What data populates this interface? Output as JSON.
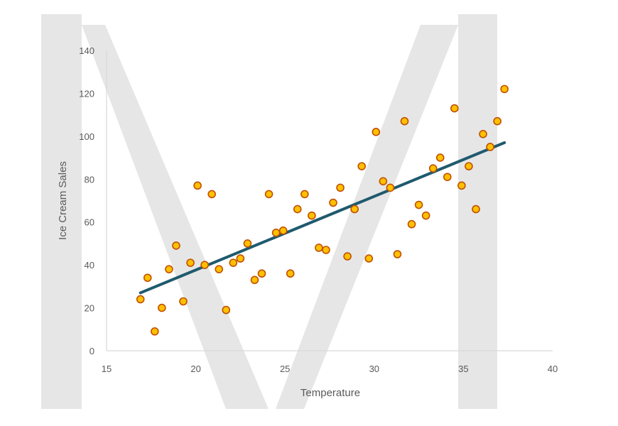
{
  "chart_data": {
    "type": "scatter",
    "xlabel": "Temperature",
    "ylabel": "Ice Cream Sales",
    "xlim": [
      15,
      40
    ],
    "ylim": [
      0,
      140
    ],
    "x_ticks": [
      15,
      20,
      25,
      30,
      35,
      40
    ],
    "y_ticks": [
      0,
      20,
      40,
      60,
      80,
      100,
      120,
      140
    ],
    "grid": false,
    "series": [
      {
        "marker_color": "#ffc000",
        "marker_edge_color": "#c05000",
        "points": [
          {
            "x": 16.9,
            "y": 24
          },
          {
            "x": 17.3,
            "y": 34
          },
          {
            "x": 17.7,
            "y": 9
          },
          {
            "x": 18.1,
            "y": 20
          },
          {
            "x": 18.5,
            "y": 38
          },
          {
            "x": 18.9,
            "y": 49
          },
          {
            "x": 19.3,
            "y": 23
          },
          {
            "x": 19.7,
            "y": 41
          },
          {
            "x": 20.1,
            "y": 77
          },
          {
            "x": 20.5,
            "y": 40
          },
          {
            "x": 20.9,
            "y": 73
          },
          {
            "x": 21.3,
            "y": 38
          },
          {
            "x": 21.7,
            "y": 19
          },
          {
            "x": 22.1,
            "y": 41
          },
          {
            "x": 22.5,
            "y": 43
          },
          {
            "x": 22.9,
            "y": 50
          },
          {
            "x": 23.3,
            "y": 33
          },
          {
            "x": 23.7,
            "y": 36
          },
          {
            "x": 24.1,
            "y": 73
          },
          {
            "x": 24.5,
            "y": 55
          },
          {
            "x": 24.9,
            "y": 56
          },
          {
            "x": 25.3,
            "y": 36
          },
          {
            "x": 25.7,
            "y": 66
          },
          {
            "x": 26.1,
            "y": 73
          },
          {
            "x": 26.5,
            "y": 63
          },
          {
            "x": 26.9,
            "y": 48
          },
          {
            "x": 27.3,
            "y": 47
          },
          {
            "x": 27.7,
            "y": 69
          },
          {
            "x": 28.1,
            "y": 76
          },
          {
            "x": 28.5,
            "y": 44
          },
          {
            "x": 28.9,
            "y": 66
          },
          {
            "x": 29.3,
            "y": 86
          },
          {
            "x": 29.7,
            "y": 43
          },
          {
            "x": 30.1,
            "y": 102
          },
          {
            "x": 30.5,
            "y": 79
          },
          {
            "x": 30.9,
            "y": 76
          },
          {
            "x": 31.3,
            "y": 45
          },
          {
            "x": 31.7,
            "y": 107
          },
          {
            "x": 32.1,
            "y": 59
          },
          {
            "x": 32.5,
            "y": 68
          },
          {
            "x": 32.9,
            "y": 63
          },
          {
            "x": 33.3,
            "y": 85
          },
          {
            "x": 33.7,
            "y": 90
          },
          {
            "x": 34.1,
            "y": 81
          },
          {
            "x": 34.5,
            "y": 113
          },
          {
            "x": 34.9,
            "y": 77
          },
          {
            "x": 35.3,
            "y": 86
          },
          {
            "x": 35.7,
            "y": 66
          },
          {
            "x": 36.1,
            "y": 101
          },
          {
            "x": 36.5,
            "y": 95
          },
          {
            "x": 36.9,
            "y": 107
          },
          {
            "x": 37.3,
            "y": 122
          }
        ]
      }
    ],
    "trendline": {
      "type": "linear",
      "color": "#1f5a6e",
      "from": {
        "x": 16.9,
        "y": 27
      },
      "to": {
        "x": 37.3,
        "y": 97
      }
    },
    "watermark": {
      "description": "large light-gray letter M behind the plot",
      "color": "#e6e6e6"
    }
  }
}
